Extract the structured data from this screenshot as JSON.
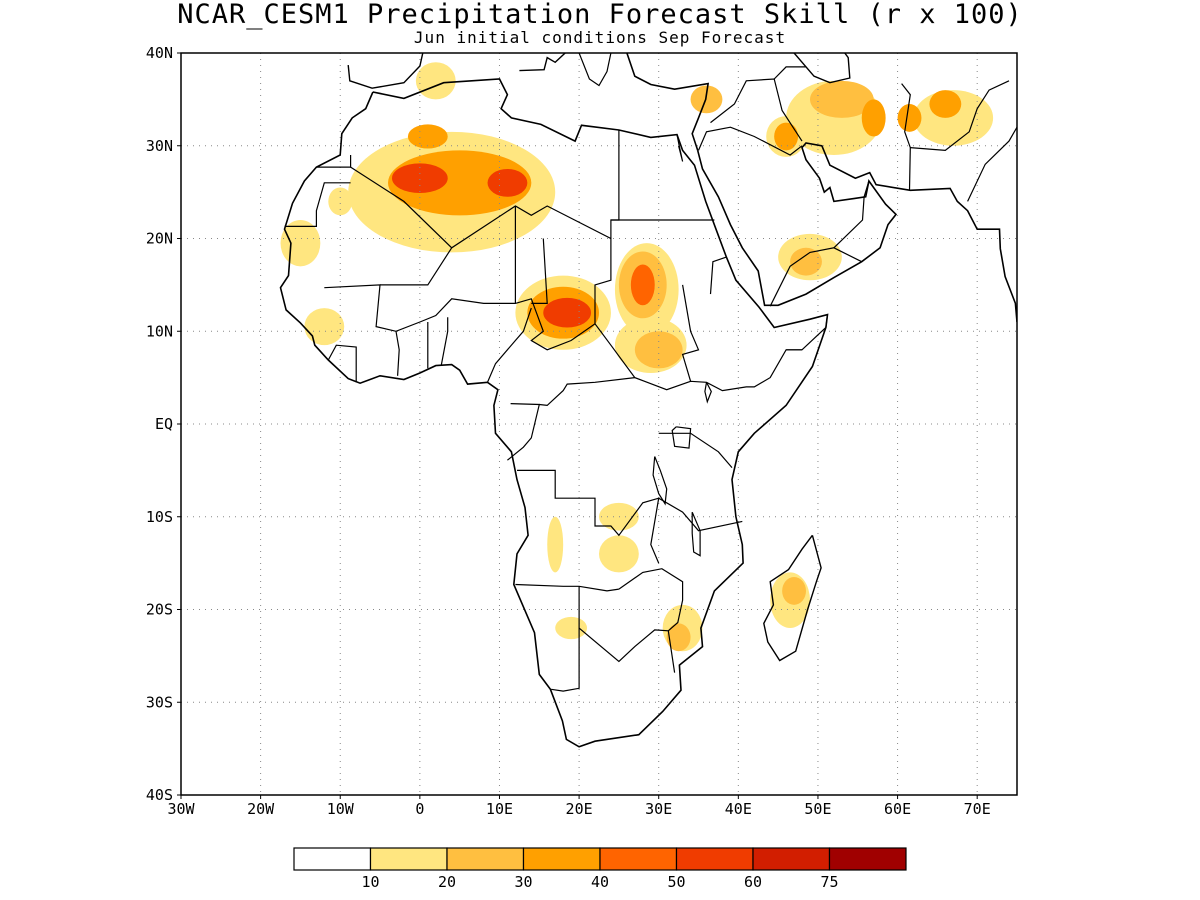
{
  "title": "NCAR_CESM1 Precipitation Forecast Skill (r x 100)",
  "subtitle": "Jun initial conditions  Sep Forecast",
  "map": {
    "lon_range": [
      -30,
      75
    ],
    "lat_range": [
      -40,
      40
    ],
    "grid": true,
    "lon_ticks": [
      {
        "lon": -30,
        "label": "30W"
      },
      {
        "lon": -20,
        "label": "20W"
      },
      {
        "lon": -10,
        "label": "10W"
      },
      {
        "lon": 0,
        "label": "0"
      },
      {
        "lon": 10,
        "label": "10E"
      },
      {
        "lon": 20,
        "label": "20E"
      },
      {
        "lon": 30,
        "label": "30E"
      },
      {
        "lon": 40,
        "label": "40E"
      },
      {
        "lon": 50,
        "label": "50E"
      },
      {
        "lon": 60,
        "label": "60E"
      },
      {
        "lon": 70,
        "label": "70E"
      }
    ],
    "lat_ticks": [
      {
        "lat": 40,
        "label": "40N"
      },
      {
        "lat": 30,
        "label": "30N"
      },
      {
        "lat": 20,
        "label": "20N"
      },
      {
        "lat": 10,
        "label": "10N"
      },
      {
        "lat": 0,
        "label": "EQ"
      },
      {
        "lat": -10,
        "label": "10S"
      },
      {
        "lat": -20,
        "label": "20S"
      },
      {
        "lat": -30,
        "label": "30S"
      },
      {
        "lat": -40,
        "label": "40S"
      }
    ],
    "skill_blobs": [
      {
        "lon": 0,
        "lat": 26.5,
        "rx": 3.5,
        "ry": 1.6,
        "level": 5
      },
      {
        "lon": 11,
        "lat": 26,
        "rx": 2.5,
        "ry": 1.5,
        "level": 5
      },
      {
        "lon": 5,
        "lat": 26,
        "rx": 9,
        "ry": 3.5,
        "level": 3
      },
      {
        "lon": 4,
        "lat": 25,
        "rx": 13,
        "ry": 6.5,
        "level": 1
      },
      {
        "lon": 1,
        "lat": 31,
        "rx": 2.5,
        "ry": 1.3,
        "level": 3
      },
      {
        "lon": 18.5,
        "lat": 12,
        "rx": 3,
        "ry": 1.6,
        "level": 5
      },
      {
        "lon": 18,
        "lat": 12,
        "rx": 4.5,
        "ry": 2.8,
        "level": 3
      },
      {
        "lon": 18,
        "lat": 12,
        "rx": 6,
        "ry": 4,
        "level": 1
      },
      {
        "lon": 28,
        "lat": 15,
        "rx": 1.5,
        "ry": 2.2,
        "level": 4
      },
      {
        "lon": 28,
        "lat": 15,
        "rx": 3,
        "ry": 3.6,
        "level": 2
      },
      {
        "lon": 28.5,
        "lat": 14.5,
        "rx": 4,
        "ry": 5,
        "level": 1
      },
      {
        "lon": 30,
        "lat": 8,
        "rx": 3,
        "ry": 2,
        "level": 2
      },
      {
        "lon": 29,
        "lat": 8.5,
        "rx": 4.5,
        "ry": 3,
        "level": 1
      },
      {
        "lon": -12,
        "lat": 10.5,
        "rx": 2.5,
        "ry": 2,
        "level": 1
      },
      {
        "lon": -15,
        "lat": 19.5,
        "rx": 2.5,
        "ry": 2.5,
        "level": 1
      },
      {
        "lon": -10,
        "lat": 24,
        "rx": 1.5,
        "ry": 1.5,
        "level": 1
      },
      {
        "lon": 2,
        "lat": 37,
        "rx": 2.5,
        "ry": 2,
        "level": 1
      },
      {
        "lon": 36,
        "lat": 35,
        "rx": 2,
        "ry": 1.5,
        "level": 2
      },
      {
        "lon": 46,
        "lat": 31,
        "rx": 1.5,
        "ry": 1.5,
        "level": 3
      },
      {
        "lon": 46,
        "lat": 31,
        "rx": 2.5,
        "ry": 2.2,
        "level": 1
      },
      {
        "lon": 53,
        "lat": 35,
        "rx": 4,
        "ry": 2,
        "level": 2
      },
      {
        "lon": 52,
        "lat": 33,
        "rx": 6,
        "ry": 4,
        "level": 1
      },
      {
        "lon": 57,
        "lat": 33,
        "rx": 1.5,
        "ry": 2,
        "level": 3
      },
      {
        "lon": 61.5,
        "lat": 33,
        "rx": 1.5,
        "ry": 1.5,
        "level": 3
      },
      {
        "lon": 66,
        "lat": 34.5,
        "rx": 2,
        "ry": 1.5,
        "level": 3
      },
      {
        "lon": 67,
        "lat": 33,
        "rx": 5,
        "ry": 3,
        "level": 1
      },
      {
        "lon": 48.5,
        "lat": 17.5,
        "rx": 2,
        "ry": 1.5,
        "level": 2
      },
      {
        "lon": 49,
        "lat": 18,
        "rx": 4,
        "ry": 2.5,
        "level": 1
      },
      {
        "lon": 25,
        "lat": -10,
        "rx": 2.5,
        "ry": 1.5,
        "level": 1
      },
      {
        "lon": 25,
        "lat": -14,
        "rx": 2.5,
        "ry": 2,
        "level": 1
      },
      {
        "lon": 17,
        "lat": -13,
        "rx": 1,
        "ry": 3,
        "level": 1
      },
      {
        "lon": 32.5,
        "lat": -23,
        "rx": 1.5,
        "ry": 1.5,
        "level": 2
      },
      {
        "lon": 33,
        "lat": -22,
        "rx": 2.5,
        "ry": 2.5,
        "level": 1
      },
      {
        "lon": 47,
        "lat": -18,
        "rx": 1.5,
        "ry": 1.5,
        "level": 2
      },
      {
        "lon": 46.5,
        "lat": -19,
        "rx": 2.5,
        "ry": 3,
        "level": 1
      },
      {
        "lon": 19,
        "lat": -22,
        "rx": 2,
        "ry": 1.2,
        "level": 1
      }
    ]
  },
  "legend": {
    "colors": [
      "#ffffff",
      "#ffe680",
      "#ffbf40",
      "#ffa000",
      "#ff6400",
      "#f03c00",
      "#d21e00",
      "#a00000"
    ],
    "labels": [
      "10",
      "20",
      "30",
      "40",
      "50",
      "60",
      "75"
    ]
  }
}
